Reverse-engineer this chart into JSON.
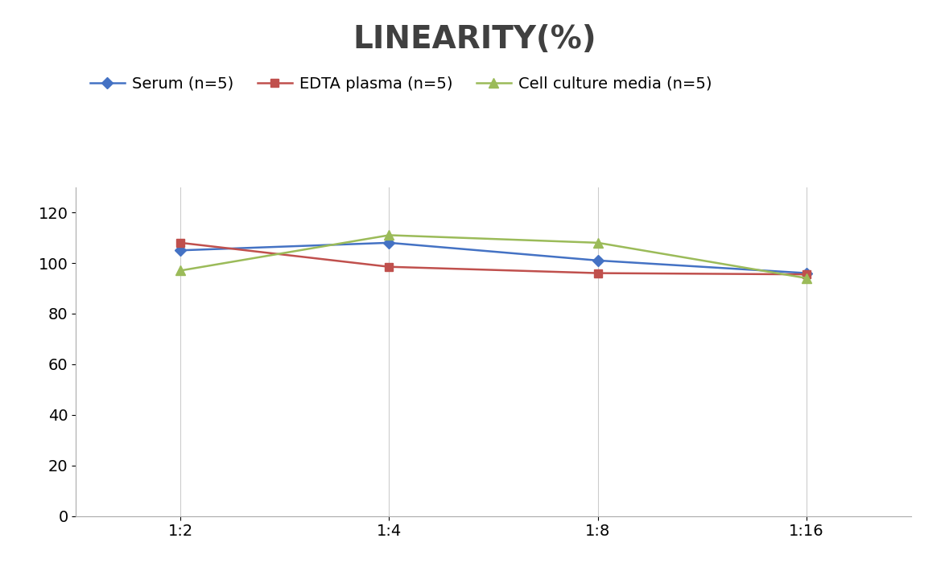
{
  "title": "LINEARITY(%)",
  "title_fontsize": 28,
  "title_fontweight": "bold",
  "title_color": "#404040",
  "x_labels": [
    "1:2",
    "1:4",
    "1:8",
    "1:16"
  ],
  "x_positions": [
    0,
    1,
    2,
    3
  ],
  "series": [
    {
      "label": "Serum (n=5)",
      "values": [
        105,
        108,
        101,
        96
      ],
      "color": "#4472C4",
      "marker": "D",
      "markersize": 7,
      "linewidth": 1.8
    },
    {
      "label": "EDTA plasma (n=5)",
      "values": [
        108,
        98.5,
        96,
        95.5
      ],
      "color": "#C0504D",
      "marker": "s",
      "markersize": 7,
      "linewidth": 1.8
    },
    {
      "label": "Cell culture media (n=5)",
      "values": [
        97,
        111,
        108,
        94
      ],
      "color": "#9BBB59",
      "marker": "^",
      "markersize": 8,
      "linewidth": 1.8
    }
  ],
  "ylim": [
    0,
    130
  ],
  "yticks": [
    0,
    20,
    40,
    60,
    80,
    100,
    120
  ],
  "ylabel": "",
  "xlabel": "",
  "legend_fontsize": 14,
  "tick_fontsize": 14,
  "background_color": "#ffffff"
}
